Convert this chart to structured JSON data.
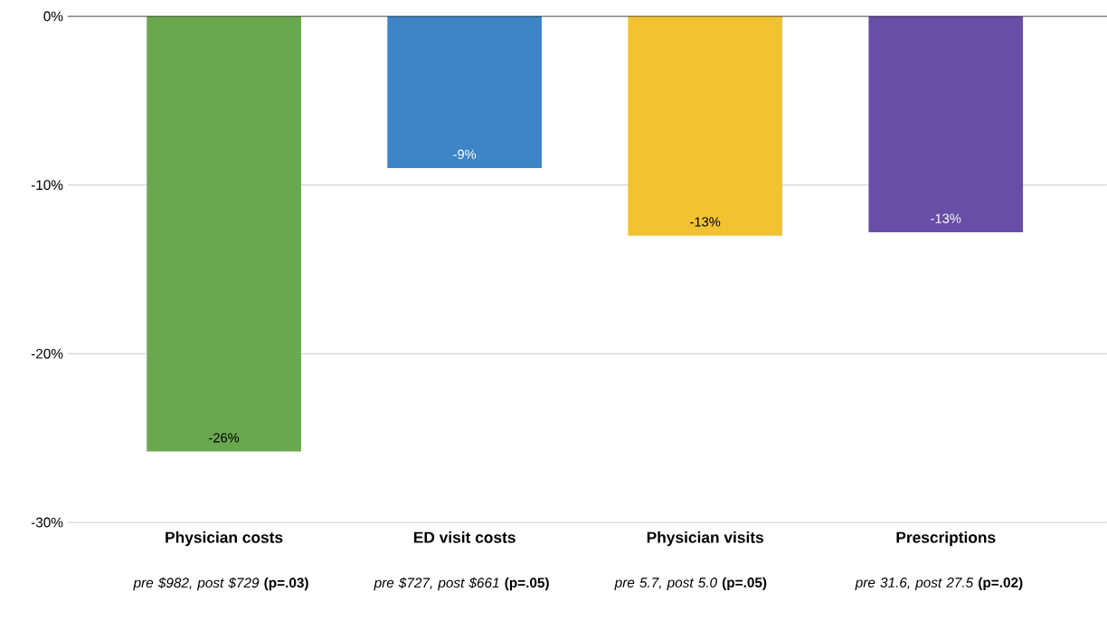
{
  "chart_data": {
    "type": "bar",
    "categories": [
      "Physician costs",
      "ED visit costs",
      "Physician visits",
      "Prescriptions"
    ],
    "values": [
      -25.8,
      -9.0,
      -13.0,
      -12.8
    ],
    "colors": [
      "#6aa84f",
      "#3d85c6",
      "#f1c232",
      "#674ea7"
    ],
    "value_labels": [
      "-26%",
      "-9%",
      "-13%",
      "-13%"
    ],
    "ylim": [
      -30,
      0
    ],
    "yticks": [
      {
        "value": -30,
        "label": "-30%"
      },
      {
        "value": -20,
        "label": "-20%"
      },
      {
        "value": -10,
        "label": "-10%"
      },
      {
        "value": 0,
        "label": "0%"
      }
    ],
    "grid": "y",
    "annotations": [
      "*pre $982, post $729* **(p=.03)**",
      "*pre $727, post $661* **(p=.05)**",
      "*pre 5.7, post 5.0* **(p=.05)**",
      "*pre 31.6, post 27.5* **(p=.02)**"
    ]
  }
}
